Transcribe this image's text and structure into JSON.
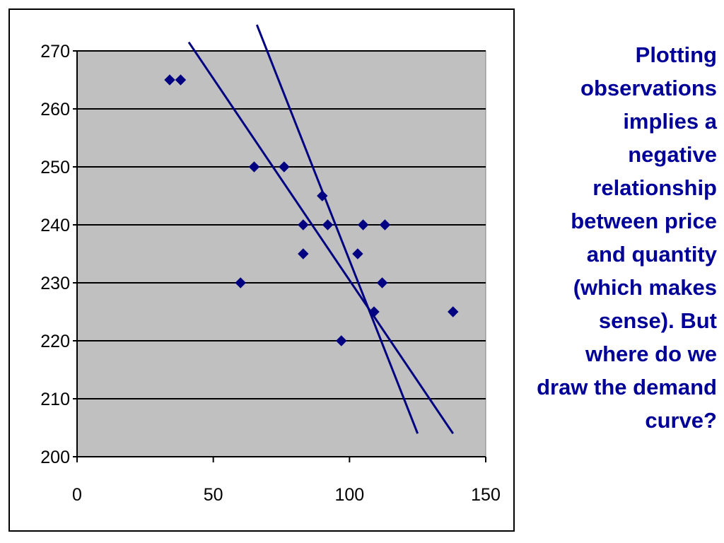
{
  "colors": {
    "plot_background": "#c0c0c0",
    "gridline": "#000000",
    "series": "#000080",
    "text_accent": "#000099"
  },
  "annotation": {
    "lines": [
      "Plotting",
      "observations",
      "implies a",
      "negative",
      "relationship",
      "between price",
      "and quantity",
      "(which makes",
      "sense).  But",
      "where do we",
      "draw the demand",
      "curve?"
    ]
  },
  "chart_data": {
    "type": "scatter",
    "title": "",
    "xlabel": "",
    "ylabel": "",
    "xlim": [
      0,
      150
    ],
    "ylim": [
      200,
      270
    ],
    "x_ticks": [
      "0",
      "50",
      "100",
      "150"
    ],
    "y_ticks": [
      "200",
      "210",
      "220",
      "230",
      "240",
      "250",
      "260",
      "270"
    ],
    "grid": "horizontal",
    "legend": "none",
    "marker": "diamond",
    "points": [
      {
        "x": 34,
        "y": 265
      },
      {
        "x": 38,
        "y": 265
      },
      {
        "x": 65,
        "y": 250
      },
      {
        "x": 76,
        "y": 250
      },
      {
        "x": 90,
        "y": 245
      },
      {
        "x": 83,
        "y": 240
      },
      {
        "x": 92,
        "y": 240
      },
      {
        "x": 105,
        "y": 240
      },
      {
        "x": 113,
        "y": 240
      },
      {
        "x": 83,
        "y": 235
      },
      {
        "x": 103,
        "y": 235
      },
      {
        "x": 60,
        "y": 230
      },
      {
        "x": 112,
        "y": 230
      },
      {
        "x": 109,
        "y": 225
      },
      {
        "x": 138,
        "y": 225
      },
      {
        "x": 97,
        "y": 220
      }
    ],
    "lines": [
      {
        "x": [
          41,
          138
        ],
        "y": [
          271.5,
          204
        ]
      },
      {
        "x": [
          66,
          125
        ],
        "y": [
          274.5,
          204
        ]
      }
    ]
  }
}
